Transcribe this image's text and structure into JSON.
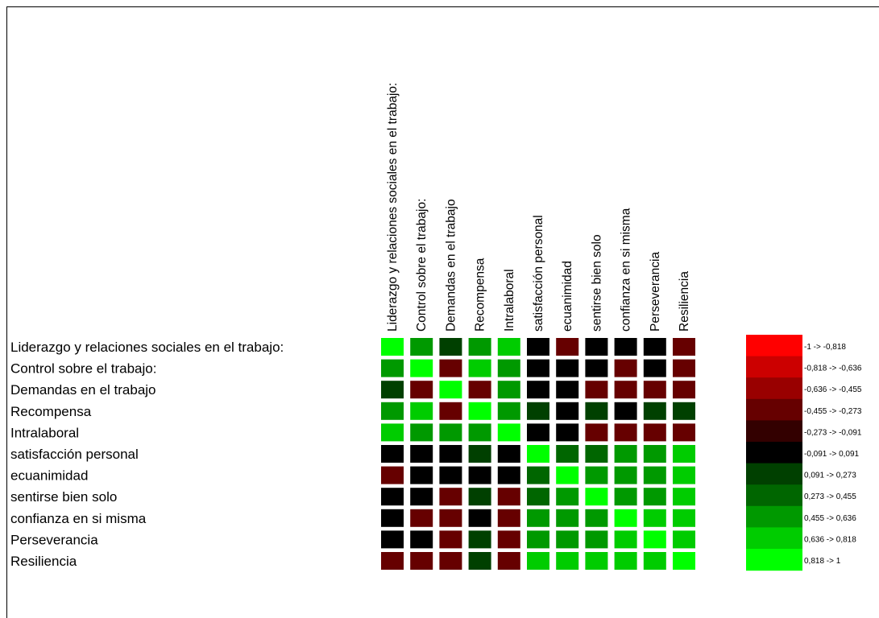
{
  "chart_data": {
    "type": "heatmap",
    "rows": [
      "Liderazgo y relaciones sociales en el trabajo:",
      "Control sobre el trabajo:",
      "Demandas en el trabajo",
      "Recompensa",
      "Intralaboral",
      "satisfacción personal",
      "ecuanimidad",
      "sentirse bien solo",
      "confianza en si misma",
      "Perseverancia",
      "Resiliencia"
    ],
    "columns": [
      "Liderazgo y relaciones sociales en el trabajo:",
      "Control sobre el trabajo:",
      "Demandas en el trabajo",
      "Recompensa",
      "Intralaboral",
      "satisfacción personal",
      "ecuanimidad",
      "sentirse bien solo",
      "confianza en si misma",
      "Perseverancia",
      "Resiliencia"
    ],
    "values": [
      [
        1,
        0.55,
        0.2,
        0.55,
        0.75,
        0.0,
        -0.35,
        0.0,
        0.0,
        0.0,
        -0.35
      ],
      [
        0.55,
        1,
        -0.35,
        0.75,
        0.55,
        0.0,
        0.0,
        0.0,
        -0.35,
        0.0,
        -0.35
      ],
      [
        0.2,
        -0.35,
        1,
        -0.35,
        0.55,
        0.0,
        0.0,
        -0.35,
        -0.35,
        -0.35,
        -0.35
      ],
      [
        0.55,
        0.75,
        -0.35,
        1,
        0.55,
        0.2,
        0.0,
        0.2,
        0.0,
        0.2,
        0.2
      ],
      [
        0.75,
        0.55,
        0.55,
        0.55,
        1,
        0.0,
        0.0,
        -0.35,
        -0.35,
        -0.35,
        -0.35
      ],
      [
        0.0,
        0.0,
        0.0,
        0.2,
        0.0,
        1,
        0.35,
        0.35,
        0.55,
        0.55,
        0.75
      ],
      [
        -0.35,
        0.0,
        0.0,
        0.0,
        0.0,
        0.35,
        1,
        0.55,
        0.55,
        0.55,
        0.75
      ],
      [
        0.0,
        0.0,
        -0.35,
        0.2,
        -0.35,
        0.35,
        0.55,
        1,
        0.55,
        0.55,
        0.75
      ],
      [
        0.0,
        -0.35,
        -0.35,
        0.0,
        -0.35,
        0.55,
        0.55,
        0.55,
        1,
        0.75,
        0.75
      ],
      [
        0.0,
        0.0,
        -0.35,
        0.2,
        -0.35,
        0.55,
        0.55,
        0.55,
        0.75,
        1,
        0.75
      ],
      [
        -0.35,
        -0.35,
        -0.35,
        0.2,
        -0.35,
        0.75,
        0.75,
        0.75,
        0.75,
        0.75,
        1
      ]
    ],
    "legend": [
      {
        "label": "-1 -> -0,818",
        "color": "#ff0000"
      },
      {
        "label": "-0,818 -> -0,636",
        "color": "#cc0000"
      },
      {
        "label": "-0,636 -> -0,455",
        "color": "#990000"
      },
      {
        "label": "-0,455 -> -0,273",
        "color": "#660000"
      },
      {
        "label": "-0,273 -> -0,091",
        "color": "#330000"
      },
      {
        "label": "-0,091 -> 0,091",
        "color": "#000000"
      },
      {
        "label": "0,091 -> 0,273",
        "color": "#004000"
      },
      {
        "label": "0,273 -> 0,455",
        "color": "#006600"
      },
      {
        "label": "0,455 -> 0,636",
        "color": "#009900"
      },
      {
        "label": "0,636 -> 0,818",
        "color": "#00cc00"
      },
      {
        "label": "0,818 -> 1",
        "color": "#00ff00"
      }
    ],
    "bins": [
      -1,
      -0.818,
      -0.636,
      -0.455,
      -0.273,
      -0.091,
      0.091,
      0.273,
      0.455,
      0.636,
      0.818,
      1
    ]
  }
}
